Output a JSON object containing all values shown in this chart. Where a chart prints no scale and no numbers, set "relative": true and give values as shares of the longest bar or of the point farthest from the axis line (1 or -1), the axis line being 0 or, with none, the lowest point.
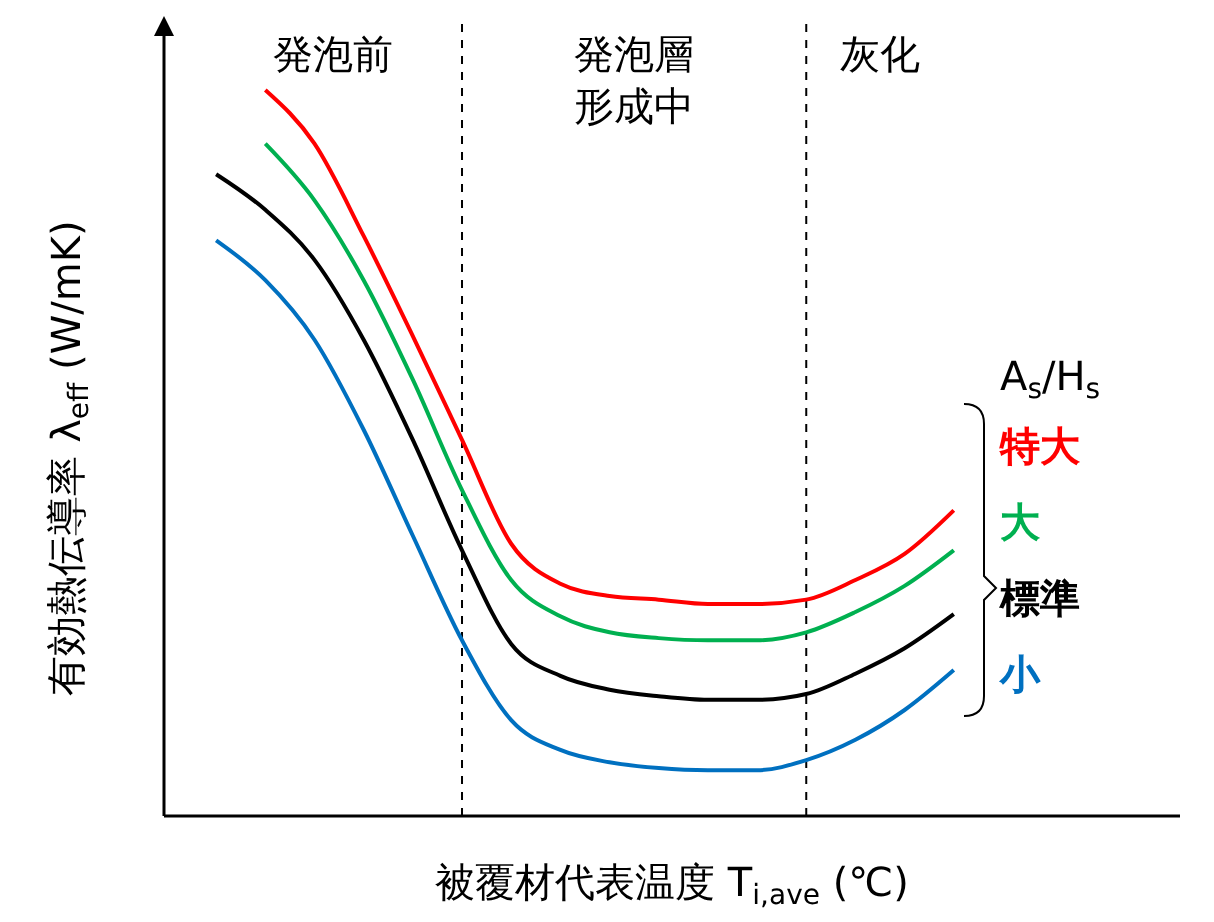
{
  "chart_data": {
    "type": "line",
    "relative": true,
    "xlabel": "被覆材代表温度 T$_{i,ave}$ (℃)",
    "ylabel": "有効熱伝導率 λ$_{eff}$ (W/mK)",
    "legend_title": "A$_{s}$/H$_{s}$",
    "legend": "right",
    "grid": false,
    "marker": "none",
    "line_style": "solid",
    "categories": [
      null,
      null,
      null,
      null,
      null,
      null,
      null,
      null,
      null,
      null,
      null,
      null,
      null,
      null,
      null,
      null
    ],
    "series": [
      {
        "name": "特大",
        "color": "#ff0000",
        "values": [
          null,
          1.0,
          0.926,
          0.799,
          0.661,
          0.518,
          0.375,
          0.32,
          0.303,
          0.298,
          0.292,
          0.292,
          0.298,
          0.325,
          0.361,
          0.421
        ]
      },
      {
        "name": "大",
        "color": "#00b050",
        "values": [
          null,
          0.926,
          0.848,
          0.738,
          0.601,
          0.449,
          0.325,
          0.275,
          0.253,
          0.245,
          0.242,
          0.242,
          0.253,
          0.281,
          0.317,
          0.366
        ]
      },
      {
        "name": "標準",
        "color": "#000000",
        "values": [
          0.884,
          0.835,
          0.766,
          0.656,
          0.518,
          0.366,
          0.237,
          0.193,
          0.174,
          0.165,
          0.16,
          0.16,
          0.168,
          0.196,
          0.231,
          0.278
        ]
      },
      {
        "name": "小",
        "color": "#0070c0",
        "values": [
          0.793,
          0.738,
          0.656,
          0.532,
          0.386,
          0.242,
          0.132,
          0.091,
          0.074,
          0.066,
          0.063,
          0.063,
          0.077,
          0.105,
          0.146,
          0.201
        ]
      }
    ],
    "annotations": [
      "発泡前",
      "発泡層形成中",
      "灰化"
    ]
  }
}
